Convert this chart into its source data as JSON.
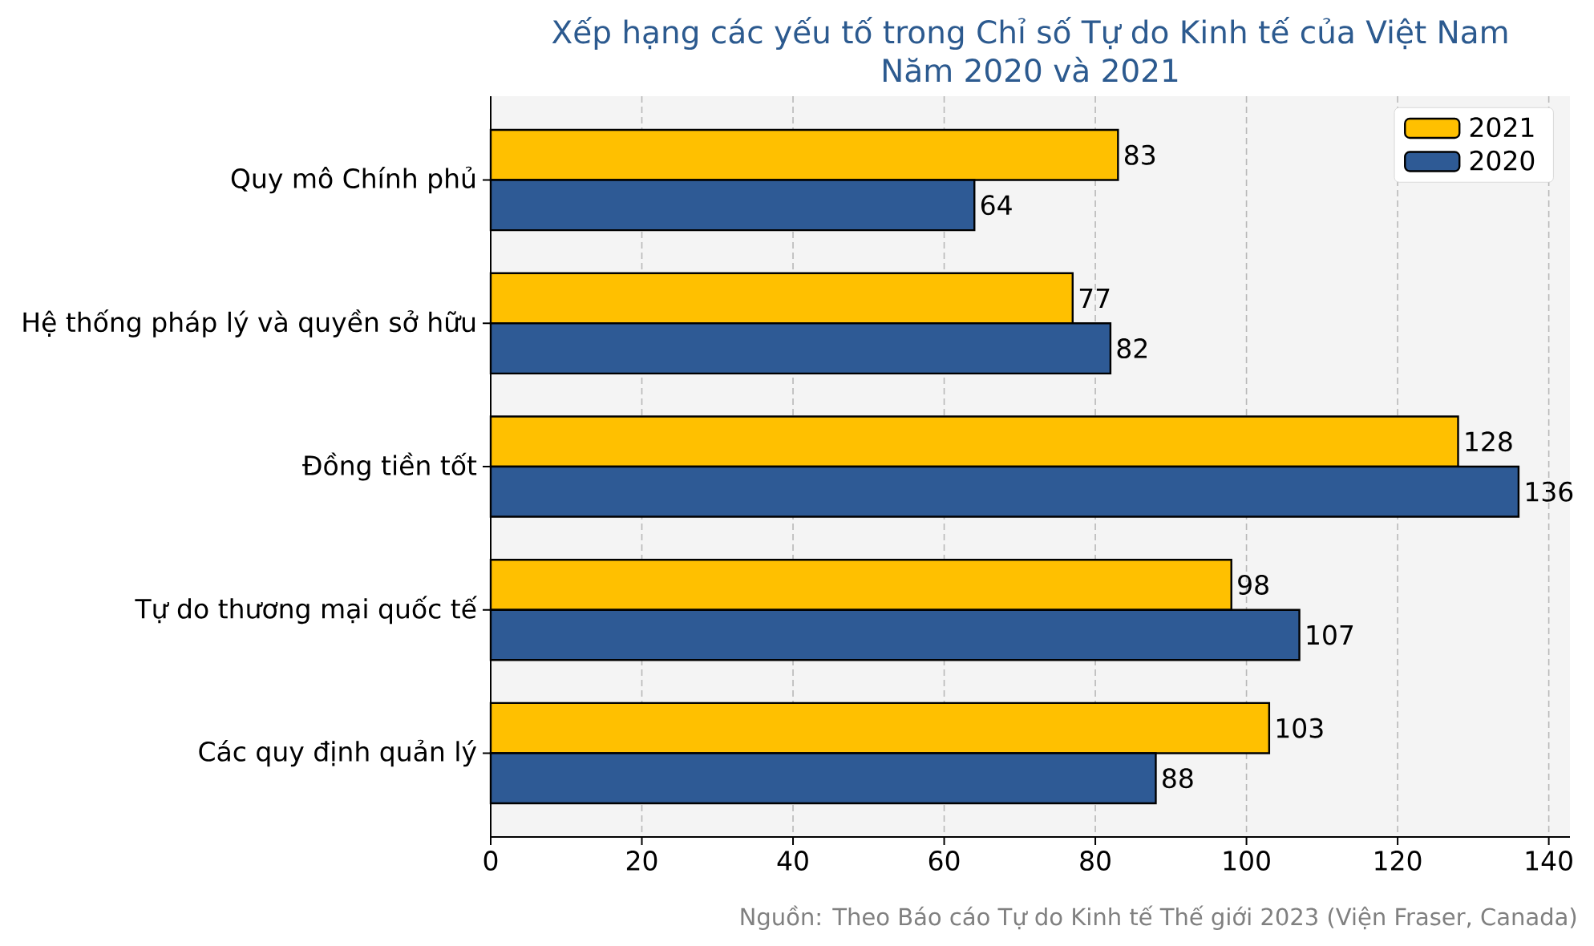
{
  "chart_data": {
    "type": "bar",
    "orientation": "horizontal",
    "title": "Xếp hạng các yếu tố trong Chỉ số Tự do Kinh tế của Việt Nam",
    "subtitle": "Năm 2020 và 2021",
    "categories": [
      "Quy mô Chính phủ",
      "Hệ thống pháp lý và quyền sở hữu",
      "Đồng tiền tốt",
      "Tự do thương mại quốc tế",
      "Các quy định quản lý"
    ],
    "series": [
      {
        "name": "2021",
        "color": "#ffc000",
        "values": [
          83,
          77,
          128,
          98,
          103
        ]
      },
      {
        "name": "2020",
        "color": "#2e5a95",
        "values": [
          64,
          82,
          136,
          107,
          88
        ]
      }
    ],
    "xlim": [
      0,
      142.8
    ],
    "xticks": [
      0,
      20,
      40,
      60,
      80,
      100,
      120,
      140
    ],
    "grid": "x",
    "legend": "top right",
    "data_labels": true,
    "annotations": [
      "Nguồn: Theo Báo cáo Tự do Kinh tế Thế giới 2023 (Viện Fraser, Canada)"
    ]
  }
}
